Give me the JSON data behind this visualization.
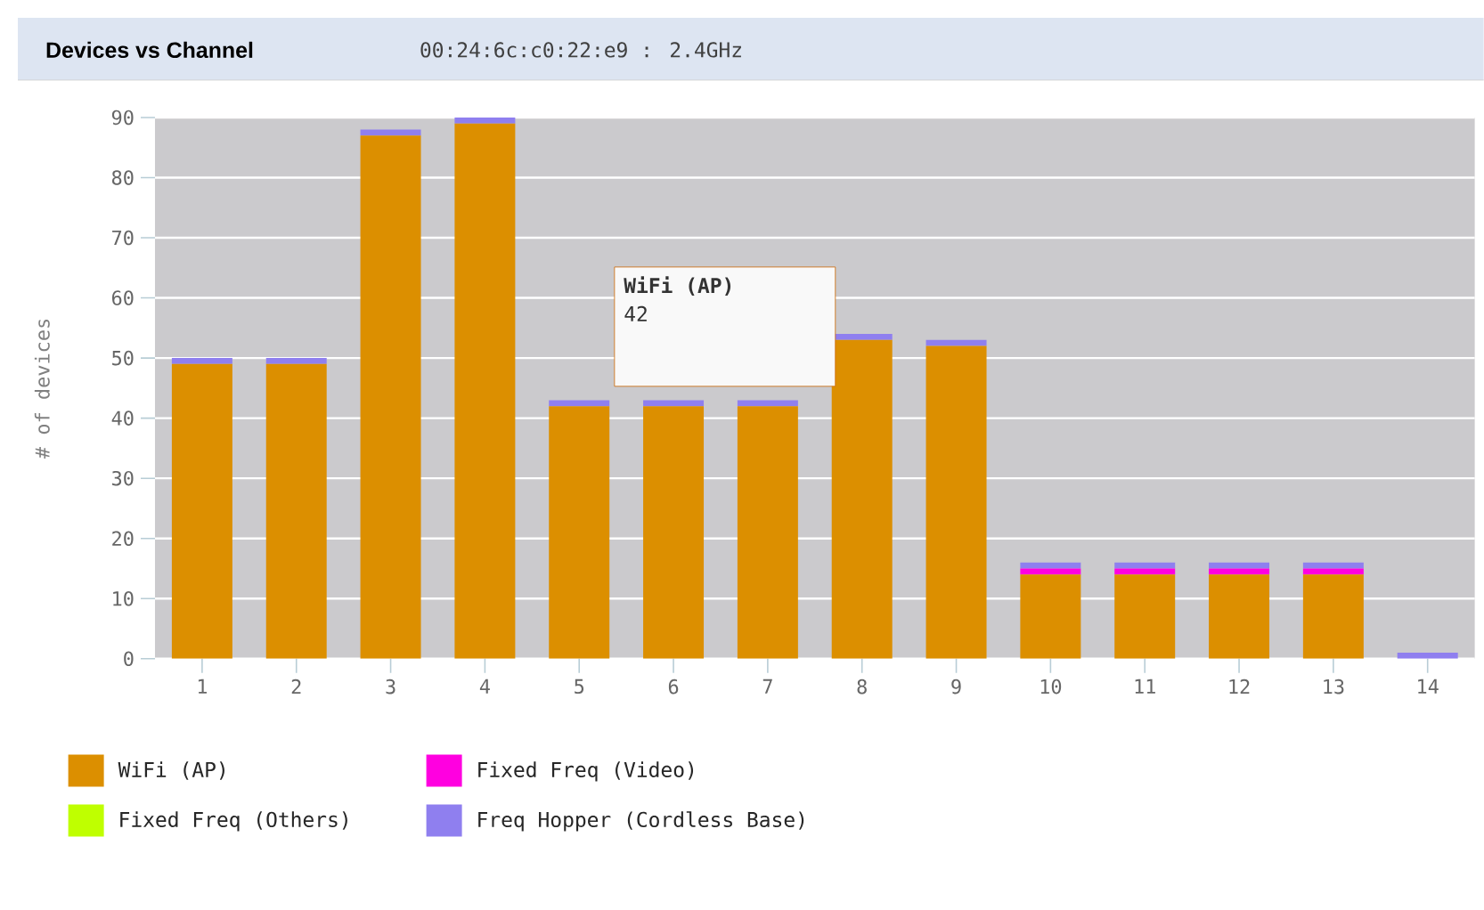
{
  "chart_data": {
    "type": "bar",
    "title": "Devices vs Channel",
    "subtitle": "00:24:6c:c0:22:e9 : 2.4GHz",
    "ylabel": "# of devices",
    "categories": [
      "1",
      "2",
      "3",
      "4",
      "5",
      "6",
      "7",
      "8",
      "9",
      "10",
      "11",
      "12",
      "13",
      "14"
    ],
    "stacked": true,
    "series": [
      {
        "name": "WiFi (AP)",
        "color": "#dc8f00",
        "values": [
          49,
          49,
          87,
          89,
          42,
          42,
          42,
          53,
          52,
          14,
          14,
          14,
          14,
          0
        ]
      },
      {
        "name": "Fixed Freq (Video)",
        "color": "#ff00e0",
        "values": [
          0,
          0,
          0,
          0,
          0,
          0,
          0,
          0,
          0,
          1,
          1,
          1,
          1,
          0
        ]
      },
      {
        "name": "Fixed Freq (Others)",
        "color": "#bfff00",
        "values": [
          0,
          0,
          0,
          0,
          0,
          0,
          0,
          0,
          0,
          0,
          0,
          0,
          0,
          0
        ]
      },
      {
        "name": "Freq Hopper (Cordless Base)",
        "color": "#8f7fef",
        "values": [
          1,
          1,
          1,
          1,
          1,
          1,
          1,
          1,
          1,
          1,
          1,
          1,
          1,
          1
        ]
      }
    ],
    "ylim": [
      0,
      90
    ],
    "yticks": [
      0,
      10,
      20,
      30,
      40,
      50,
      60,
      70,
      80,
      90
    ],
    "grid": "y",
    "legend": "bottom left",
    "annotations": [
      "WiFi (AP)",
      "42"
    ]
  }
}
